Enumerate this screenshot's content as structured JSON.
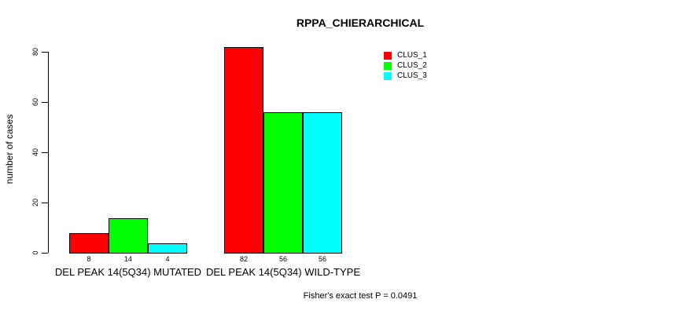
{
  "chart_data": {
    "type": "bar",
    "title": "RPPA_CHIERARCHICAL",
    "ylabel": "number of cases",
    "xlabel": "",
    "ylim": [
      0,
      80
    ],
    "yticks": [
      "0",
      "20",
      "40",
      "60",
      "80"
    ],
    "grid": false,
    "legend_position": "top-right",
    "background_color": "#ffffff",
    "bar_border_color": "#000000",
    "categories": [
      "DEL PEAK 14(5Q34) MUTATED",
      "DEL PEAK 14(5Q34) WILD-TYPE"
    ],
    "series": [
      {
        "name": "CLUS_1",
        "color": "#ff0000",
        "values": [
          8,
          82
        ]
      },
      {
        "name": "CLUS_2",
        "color": "#00ff00",
        "values": [
          14,
          56
        ]
      },
      {
        "name": "CLUS_3",
        "color": "#00ffff",
        "values": [
          4,
          56
        ]
      }
    ],
    "bar_value_labels": [
      [
        8,
        14,
        4
      ],
      [
        82,
        56,
        56
      ]
    ],
    "annotation": "Fisher's exact test P = 0.0491"
  }
}
